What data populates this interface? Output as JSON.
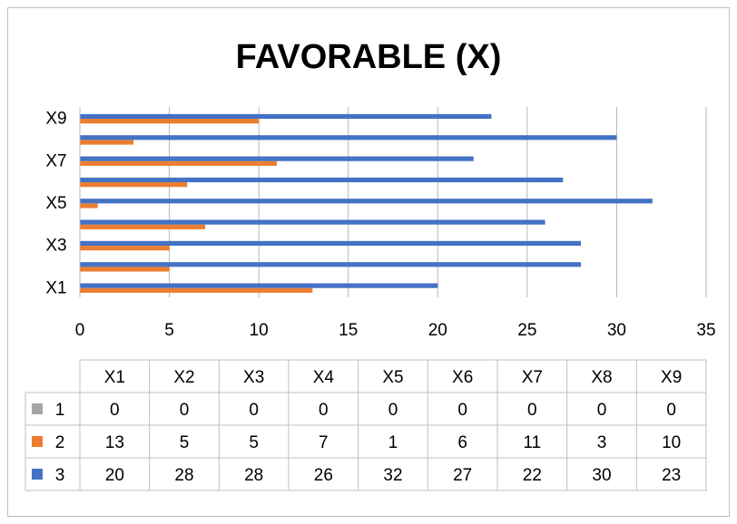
{
  "chart_data": {
    "type": "bar",
    "orientation": "horizontal",
    "title": "FAVORABLE (X)",
    "categories": [
      "X1",
      "X2",
      "X3",
      "X4",
      "X5",
      "X6",
      "X7",
      "X8",
      "X9"
    ],
    "y_tick_labels": [
      "X1",
      "X3",
      "X5",
      "X7",
      "X9"
    ],
    "x_ticks": [
      "0",
      "5",
      "10",
      "15",
      "20",
      "25",
      "30",
      "35"
    ],
    "xlim": [
      0,
      35
    ],
    "grid": "vertical",
    "series": [
      {
        "name": "1",
        "color": "#a5a5a5",
        "values": [
          0,
          0,
          0,
          0,
          0,
          0,
          0,
          0,
          0
        ]
      },
      {
        "name": "2",
        "color": "#ed7d31",
        "values": [
          13,
          5,
          5,
          7,
          1,
          6,
          11,
          3,
          10
        ]
      },
      {
        "name": "3",
        "color": "#4472c4",
        "values": [
          20,
          28,
          28,
          26,
          32,
          27,
          22,
          30,
          23
        ]
      }
    ],
    "data_table": true
  }
}
